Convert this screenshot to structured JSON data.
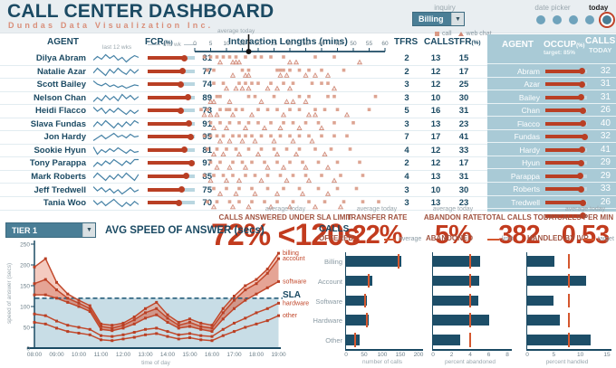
{
  "header": {
    "title": "CALL CENTER DASHBOARD",
    "subtitle": "Dundas Data Visualization Inc.",
    "inquiry_label": "inquiry",
    "inquiry_value": "Billing",
    "date_picker_label": "date picker",
    "today_label": "today"
  },
  "colors": {
    "navy": "#1b4a63",
    "salmon": "#d98f7a",
    "red_line": "#c2492c",
    "kpi_red": "#c23b1e",
    "muted_red": "#a0523f",
    "teal": "#4a7e96",
    "panel_blue": "#a9cad6",
    "bar_teal": "#1d4e68",
    "spark_blue": "#4682a6",
    "sla_fill": "#c8dde6",
    "marker_salmon": "#d99a86",
    "orange": "#d4572e"
  },
  "table": {
    "col_agent": "AGENT",
    "col_fcr": "FCR",
    "col_fcr_unit": "(%)",
    "col_last12": "last 12 wks",
    "col_thiswk": "this wk",
    "scatter_title": "Interaction Lengths (mins)",
    "scatter_avg_label": "average today",
    "scatter_avg_minutes": 17,
    "legend_call": "call",
    "legend_webchat": "web chat",
    "col_tfrs": "TFRS",
    "col_calls": "CALLS",
    "col_tfr": "TFR",
    "col_tfr_unit": "(%)",
    "axis_ticks": [
      0,
      5,
      10,
      15,
      20,
      25,
      30,
      35,
      40,
      45,
      50,
      55,
      60
    ],
    "rows": [
      {
        "agent": "Dilya Abram",
        "last": "Abram",
        "fcr": 81,
        "tfrs": 2,
        "calls": 13,
        "tfr": 15,
        "occup": 90,
        "calls_today": 32,
        "trend": [
          78,
          82,
          79,
          84,
          80,
          83,
          78,
          81,
          76,
          80,
          83,
          81
        ],
        "call_times": [
          3,
          5,
          7,
          9,
          11,
          13,
          16,
          19,
          21,
          24,
          28,
          38,
          44
        ],
        "chat_times": [
          8,
          12,
          13,
          14,
          30,
          32,
          52
        ]
      },
      {
        "agent": "Natalie Azar",
        "last": "Azar",
        "fcr": 77,
        "tfrs": 2,
        "calls": 12,
        "tfr": 17,
        "occup": 89,
        "calls_today": 31,
        "trend": [
          74,
          78,
          75,
          72,
          77,
          74,
          78,
          75,
          73,
          77,
          74,
          77
        ],
        "call_times": [
          4,
          6,
          15,
          17,
          26,
          27,
          28,
          30,
          33,
          36,
          40,
          47
        ],
        "chat_times": [
          12,
          16,
          17,
          27,
          29,
          35,
          38,
          42
        ]
      },
      {
        "agent": "Scott Bailey",
        "last": "Bailey",
        "fcr": 74,
        "tfrs": 3,
        "calls": 12,
        "tfr": 25,
        "occup": 87,
        "calls_today": 31,
        "trend": [
          80,
          76,
          74,
          77,
          73,
          75,
          72,
          74,
          71,
          73,
          75,
          74
        ],
        "call_times": [
          6,
          9,
          14,
          16,
          18,
          20,
          24,
          28,
          31,
          37,
          40,
          42
        ],
        "chat_times": [
          10,
          13,
          15,
          17,
          23,
          26,
          30,
          44
        ]
      },
      {
        "agent": "Nelson Chan",
        "last": "Chan",
        "fcr": 89,
        "tfrs": 3,
        "calls": 10,
        "tfr": 30,
        "occup": 92,
        "calls_today": 26,
        "trend": [
          84,
          88,
          85,
          90,
          86,
          89,
          85,
          91,
          87,
          90,
          86,
          89
        ],
        "call_times": [
          7,
          8,
          17,
          19,
          25,
          33,
          36,
          42,
          44,
          57
        ],
        "chat_times": [
          5,
          6,
          11,
          21,
          29,
          31,
          35
        ]
      },
      {
        "agent": "Heidi Flacco",
        "last": "Flacco",
        "fcr": 73,
        "tfrs": 5,
        "calls": 16,
        "tfr": 31,
        "occup": 91,
        "calls_today": 40,
        "trend": [
          76,
          72,
          75,
          70,
          74,
          71,
          75,
          72,
          69,
          73,
          70,
          73
        ],
        "call_times": [
          2,
          4,
          8,
          10,
          11,
          13,
          15,
          20,
          23,
          26,
          30,
          33,
          38,
          41,
          45,
          55
        ],
        "chat_times": [
          3,
          5,
          7,
          12,
          18,
          28,
          36,
          38,
          48
        ]
      },
      {
        "agent": "Slava Fundas",
        "last": "Fundas",
        "fcr": 91,
        "tfrs": 3,
        "calls": 13,
        "tfr": 23,
        "occup": 96,
        "calls_today": 32,
        "trend": [
          88,
          92,
          89,
          93,
          90,
          87,
          91,
          88,
          92,
          89,
          93,
          91
        ],
        "call_times": [
          5,
          8,
          11,
          14,
          17,
          20,
          24,
          28,
          31,
          35,
          39,
          44,
          50
        ],
        "chat_times": [
          6,
          10,
          16,
          22,
          27,
          33,
          40
        ]
      },
      {
        "agent": "Jon Hardy",
        "last": "Hardy",
        "fcr": 95,
        "tfrs": 7,
        "calls": 17,
        "tfr": 41,
        "occup": 89,
        "calls_today": 41,
        "trend": [
          90,
          93,
          96,
          92,
          95,
          98,
          94,
          96,
          93,
          97,
          94,
          95
        ],
        "call_times": [
          3,
          5,
          7,
          9,
          12,
          14,
          16,
          18,
          21,
          24,
          27,
          30,
          33,
          36,
          40,
          44,
          48
        ],
        "chat_times": [
          8,
          11,
          15,
          19,
          25,
          31,
          37
        ]
      },
      {
        "agent": "Sookie Hyun",
        "last": "Hyun",
        "fcr": 81,
        "tfrs": 4,
        "calls": 12,
        "tfr": 33,
        "occup": 87,
        "calls_today": 29,
        "trend": [
          86,
          78,
          83,
          80,
          84,
          81,
          85,
          82,
          79,
          83,
          80,
          81
        ],
        "call_times": [
          4,
          7,
          10,
          13,
          17,
          21,
          25,
          29,
          33,
          38,
          43,
          49
        ],
        "chat_times": [
          6,
          9,
          14,
          20,
          26,
          32,
          41
        ]
      },
      {
        "agent": "Tony Parappa",
        "last": "Parappa",
        "fcr": 97,
        "tfrs": 2,
        "calls": 12,
        "tfr": 17,
        "occup": 85,
        "calls_today": 29,
        "trend": [
          92,
          95,
          93,
          96,
          94,
          97,
          95,
          93,
          96,
          94,
          97,
          97
        ],
        "call_times": [
          5,
          8,
          12,
          15,
          18,
          22,
          26,
          30,
          34,
          39,
          45,
          52
        ],
        "chat_times": [
          7,
          11,
          16,
          23,
          28,
          35,
          42
        ]
      },
      {
        "agent": "Mark Roberts",
        "last": "Roberts",
        "fcr": 85,
        "tfrs": 4,
        "calls": 13,
        "tfr": 31,
        "occup": 88,
        "calls_today": 33,
        "trend": [
          82,
          86,
          83,
          80,
          84,
          81,
          85,
          82,
          86,
          83,
          80,
          85
        ],
        "call_times": [
          3,
          6,
          9,
          12,
          16,
          19,
          23,
          27,
          31,
          35,
          40,
          46,
          53
        ],
        "chat_times": [
          5,
          10,
          14,
          21,
          29,
          36,
          44
        ]
      },
      {
        "agent": "Jeff Tredwell",
        "last": "Tredwell",
        "fcr": 75,
        "tfrs": 3,
        "calls": 10,
        "tfr": 30,
        "occup": 91,
        "calls_today": 26,
        "trend": [
          78,
          74,
          77,
          73,
          76,
          72,
          75,
          71,
          74,
          77,
          73,
          75
        ],
        "call_times": [
          6,
          10,
          14,
          18,
          23,
          28,
          33,
          39,
          45,
          51
        ],
        "chat_times": [
          8,
          13,
          19,
          26,
          34,
          42
        ]
      },
      {
        "agent": "Tania Woo",
        "last": "Woo",
        "fcr": 70,
        "tfrs": 3,
        "calls": 13,
        "tfr": 23,
        "occup": 92,
        "calls_today": 32,
        "trend": [
          74,
          70,
          73,
          69,
          72,
          75,
          71,
          68,
          72,
          69,
          73,
          70
        ],
        "call_times": [
          4,
          7,
          11,
          14,
          18,
          22,
          26,
          31,
          36,
          41,
          47,
          53,
          58
        ],
        "chat_times": [
          6,
          12,
          17,
          24,
          30,
          38,
          46
        ]
      }
    ]
  },
  "panel": {
    "col_agent": "AGENT",
    "col_occup": "OCCUP",
    "occup_unit": "(%)",
    "occup_target": "target: 85%",
    "col_calls1": "CALLS",
    "col_calls2": "TODAY"
  },
  "kpis": [
    {
      "caption": "average today",
      "label": "CALLS ANSWERED UNDER SLA LIMIT",
      "value": "72% <120s"
    },
    {
      "caption": "average today",
      "label": "TRANSFER RATE",
      "value": "22%"
    },
    {
      "caption": "average today",
      "label": "ABANDON RATE",
      "value": "5%"
    },
    {
      "caption": "",
      "label": "TOTAL CALLS TODAY",
      "value": "382"
    },
    {
      "caption": "average today",
      "label": "CALLS PER MIN",
      "value": "0.53"
    }
  ],
  "speed_chart": {
    "tier_value": "TIER 1",
    "title": "AVG SPEED OF ANSWER (secs)",
    "sla_label": "SLA"
  },
  "bar_section": {
    "group_title1": "CALLS",
    "group_title2": "OFFERED",
    "legend_average": "average",
    "legend_limit": "limit",
    "legend_target": "target",
    "title_abandoned": "ABANDONED",
    "title_ivr": "HANDLED BY IVR"
  },
  "chart_data": [
    {
      "id": "avg_speed_of_answer",
      "type": "line",
      "title": "AVG SPEED OF ANSWER (secs)",
      "xlabel": "time of day",
      "ylabel": "speed of answer (secs)",
      "ylim": [
        0,
        250
      ],
      "yticks": [
        0,
        50,
        100,
        150,
        200,
        250
      ],
      "sla": 120,
      "x": [
        8,
        8.5,
        9,
        9.5,
        10,
        10.5,
        11,
        11.5,
        12,
        12.5,
        13,
        13.5,
        14,
        14.5,
        15,
        15.5,
        16,
        16.5,
        17,
        17.5,
        18,
        18.5,
        19
      ],
      "xtick_hours": [
        "08:00",
        "09:00",
        "10:00",
        "11:00",
        "12:00",
        "13:00",
        "14:00",
        "15:00",
        "16:00",
        "17:00",
        "18:00",
        "19:00"
      ],
      "series": [
        {
          "name": "billing",
          "values": [
            195,
            215,
            158,
            130,
            115,
            102,
            58,
            55,
            60,
            75,
            95,
            110,
            80,
            62,
            70,
            60,
            55,
            95,
            125,
            150,
            165,
            190,
            228
          ]
        },
        {
          "name": "account",
          "values": [
            155,
            165,
            140,
            120,
            108,
            95,
            52,
            48,
            55,
            68,
            85,
            95,
            72,
            55,
            62,
            52,
            48,
            85,
            115,
            140,
            155,
            180,
            215
          ]
        },
        {
          "name": "software",
          "values": [
            128,
            128,
            120,
            110,
            100,
            88,
            45,
            42,
            48,
            58,
            72,
            80,
            62,
            48,
            52,
            45,
            40,
            70,
            95,
            115,
            130,
            145,
            160
          ]
        },
        {
          "name": "hardware",
          "values": [
            82,
            78,
            65,
            55,
            50,
            45,
            30,
            28,
            32,
            38,
            45,
            48,
            40,
            32,
            35,
            30,
            28,
            45,
            60,
            72,
            85,
            95,
            108
          ]
        },
        {
          "name": "other",
          "values": [
            62,
            58,
            48,
            40,
            36,
            32,
            20,
            18,
            22,
            26,
            32,
            35,
            28,
            22,
            25,
            20,
            18,
            30,
            40,
            50,
            58,
            66,
            78
          ]
        }
      ]
    },
    {
      "id": "calls_offered",
      "type": "bar",
      "title": "CALLS OFFERED",
      "xlabel": "number of calls",
      "categories": [
        "Billing",
        "Account",
        "Software",
        "Hardware",
        "Other"
      ],
      "values": [
        152,
        73,
        57,
        62,
        37
      ],
      "average": [
        146,
        62,
        53,
        58,
        26
      ],
      "xlim": [
        0,
        200
      ],
      "xticks": [
        0,
        50,
        100,
        150,
        200
      ]
    },
    {
      "id": "abandoned",
      "type": "bar",
      "title": "ABANDONED",
      "xlabel": "percent abandoned",
      "categories": [
        "Billing",
        "Account",
        "Software",
        "Hardware",
        "Other"
      ],
      "values": [
        5.1,
        5.0,
        4.9,
        6.0,
        2.9
      ],
      "limit": 4,
      "xlim": [
        0,
        8
      ],
      "xticks": [
        0,
        2,
        4,
        6,
        8
      ]
    },
    {
      "id": "handled_by_ivr",
      "type": "bar",
      "title": "HANDLED BY IVR",
      "xlabel": "percent handled",
      "categories": [
        "Billing",
        "Account",
        "Software",
        "Hardware",
        "Other"
      ],
      "values": [
        5.1,
        11.0,
        5.0,
        6.1,
        12.0
      ],
      "target": 7.8,
      "xlim": [
        0,
        15
      ],
      "xticks": [
        0,
        5,
        10,
        15
      ]
    }
  ]
}
